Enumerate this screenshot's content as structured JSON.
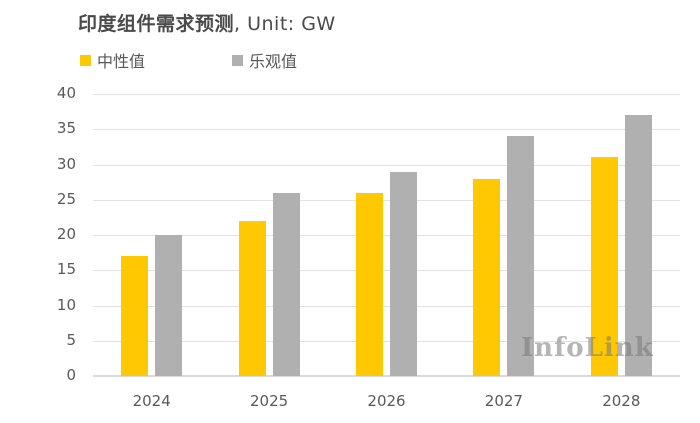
{
  "title": {
    "zh": "印度组件需求预测",
    "unit": ", Unit: GW"
  },
  "legend": [
    {
      "label": "中性值",
      "color": "#FFC800"
    },
    {
      "label": "乐观值",
      "color": "#B0B0B0"
    }
  ],
  "watermark": "InfoLink",
  "colors": {
    "neutral": "#FFC800",
    "optimistic": "#B0B0B0",
    "grid": "#E2E2E2",
    "text": "#595959"
  },
  "axis": {
    "yticks": [
      "0",
      "5",
      "10",
      "15",
      "20",
      "25",
      "30",
      "35",
      "40"
    ],
    "xticks": [
      "2024",
      "2025",
      "2026",
      "2027",
      "2028"
    ]
  },
  "chart_data": {
    "type": "bar",
    "title": "印度组件需求预测, Unit: GW",
    "xlabel": "",
    "ylabel": "",
    "categories": [
      "2024",
      "2025",
      "2026",
      "2027",
      "2028"
    ],
    "series": [
      {
        "name": "中性值",
        "color": "#FFC800",
        "values": [
          17,
          22,
          26,
          28,
          31
        ]
      },
      {
        "name": "乐观值",
        "color": "#B0B0B0",
        "values": [
          20,
          26,
          29,
          34,
          37
        ]
      }
    ],
    "ylim": [
      0,
      40
    ],
    "ytick_step": 5,
    "grid": true,
    "legend_position": "top-left",
    "annotations": [
      "InfoLink watermark"
    ]
  }
}
